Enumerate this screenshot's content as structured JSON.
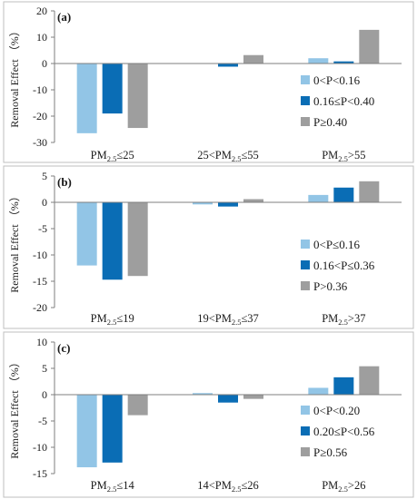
{
  "chart_data": [
    {
      "type": "bar",
      "panel_label": "(a)",
      "ylabel": "Removal Effect （%）",
      "ylim": [
        -30,
        20
      ],
      "yticks": [
        -30,
        -20,
        -10,
        0,
        10,
        20
      ],
      "ytick_labels": [
        "-30",
        "-20",
        "-10",
        "0",
        "10",
        "20"
      ],
      "categories": [
        {
          "pre": "PM",
          "sub": "2.5",
          "post": "≤25"
        },
        {
          "pre": "25<PM",
          "sub": "2.5",
          "post": "≤55"
        },
        {
          "pre": "PM",
          "sub": "2.5",
          "post": ">55"
        }
      ],
      "series": [
        {
          "name": "0<P<0.16",
          "color": "#92c5e6",
          "values": [
            -26.5,
            0,
            2.0
          ]
        },
        {
          "name": "0.16≤P<0.40",
          "color": "#0a6db5",
          "values": [
            -19.0,
            -1.2,
            0.8
          ]
        },
        {
          "name": "P≥0.40",
          "color": "#9e9e9e",
          "values": [
            -24.5,
            3.2,
            12.8
          ]
        }
      ],
      "legend": "right",
      "grid": false
    },
    {
      "type": "bar",
      "panel_label": "(b)",
      "ylabel": "Removal Effect （%）",
      "ylim": [
        -20,
        5
      ],
      "yticks": [
        -20,
        -15,
        -10,
        -5,
        0,
        5
      ],
      "ytick_labels": [
        "-20",
        "-15",
        "-10",
        "-5",
        "0",
        "5"
      ],
      "categories": [
        {
          "pre": "PM",
          "sub": "2.5",
          "post": "≤19"
        },
        {
          "pre": "19<PM",
          "sub": "2.5",
          "post": "≤37"
        },
        {
          "pre": "PM",
          "sub": "2.5",
          "post": ">37"
        }
      ],
      "series": [
        {
          "name": "0<P≤0.16",
          "color": "#92c5e6",
          "values": [
            -12.0,
            -0.4,
            1.4
          ]
        },
        {
          "name": "0.16<P≤0.36",
          "color": "#0a6db5",
          "values": [
            -14.7,
            -0.8,
            2.8
          ]
        },
        {
          "name": "P>0.36",
          "color": "#9e9e9e",
          "values": [
            -14.0,
            0.6,
            4.0
          ]
        }
      ],
      "legend": "right",
      "grid": false
    },
    {
      "type": "bar",
      "panel_label": "(c)",
      "ylabel": "Removal Effect （%）",
      "ylim": [
        -15,
        10
      ],
      "yticks": [
        -15,
        -10,
        -5,
        0,
        5,
        10
      ],
      "ytick_labels": [
        "-15",
        "-10",
        "-5",
        "0",
        "5",
        "10"
      ],
      "categories": [
        {
          "pre": "PM",
          "sub": "2.5",
          "post": "≤14"
        },
        {
          "pre": "14<PM",
          "sub": "2.5",
          "post": "≤26"
        },
        {
          "pre": "PM",
          "sub": "2.5",
          "post": ">26"
        }
      ],
      "series": [
        {
          "name": "0<P<0.20",
          "color": "#92c5e6",
          "values": [
            -13.8,
            0.3,
            1.3
          ]
        },
        {
          "name": "0.20≤P<0.56",
          "color": "#0a6db5",
          "values": [
            -12.9,
            -1.5,
            3.3
          ]
        },
        {
          "name": "P≥0.56",
          "color": "#9e9e9e",
          "values": [
            -3.9,
            -0.8,
            5.4
          ]
        }
      ],
      "legend": "right",
      "grid": false
    }
  ]
}
